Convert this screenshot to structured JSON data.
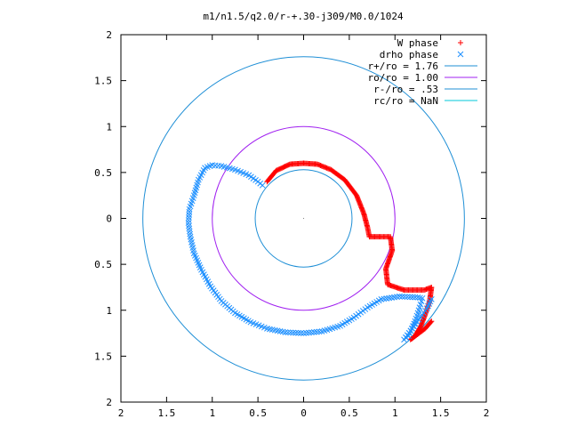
{
  "chart_data": {
    "type": "scatter",
    "title": "m1/n1.5/q2.0/r-+.30-j309/M0.0/1024",
    "xlabel": "",
    "ylabel": "",
    "xlim": [
      -2,
      2
    ],
    "ylim": [
      -2,
      2
    ],
    "x_tick_labels": [
      "2",
      "1.5",
      "1",
      "0.5",
      "0",
      "0.5",
      "1",
      "1.5",
      "2"
    ],
    "y_tick_labels": [
      "2",
      "1.5",
      "1",
      "0.5",
      "0",
      "0.5",
      "1",
      "1.5",
      "2"
    ],
    "grid": false,
    "legend_position": "top-right",
    "colors": {
      "w_phase": "#ff0000",
      "drho_phase": "#1e90ff",
      "r_plus": "#1f8fd6",
      "r_o": "#a020f0",
      "r_minus": "#1f8fd6",
      "r_c": "#00c8d8"
    },
    "series": [
      {
        "name": "W phase",
        "marker": "+",
        "key": "w_phase",
        "points": [
          [
            -0.4,
            0.4
          ],
          [
            -0.3,
            0.52
          ],
          [
            -0.15,
            0.59
          ],
          [
            0.0,
            0.6
          ],
          [
            0.15,
            0.59
          ],
          [
            0.3,
            0.53
          ],
          [
            0.45,
            0.42
          ],
          [
            0.58,
            0.25
          ],
          [
            0.66,
            0.05
          ],
          [
            0.7,
            -0.1
          ],
          [
            0.72,
            -0.2
          ],
          [
            0.85,
            -0.2
          ],
          [
            0.95,
            -0.2
          ],
          [
            0.97,
            -0.35
          ],
          [
            0.9,
            -0.55
          ],
          [
            0.92,
            -0.72
          ],
          [
            1.1,
            -0.78
          ],
          [
            1.32,
            -0.78
          ],
          [
            1.4,
            -0.75
          ],
          [
            1.38,
            -0.9
          ],
          [
            1.33,
            -1.05
          ],
          [
            1.28,
            -1.18
          ],
          [
            1.22,
            -1.28
          ],
          [
            1.17,
            -1.32
          ],
          [
            1.33,
            -1.2
          ],
          [
            1.4,
            -1.12
          ]
        ]
      },
      {
        "name": "drho phase",
        "marker": "x",
        "key": "drho_phase",
        "points": [
          [
            -0.45,
            0.36
          ],
          [
            -0.5,
            0.4
          ],
          [
            -0.6,
            0.47
          ],
          [
            -0.75,
            0.53
          ],
          [
            -0.9,
            0.57
          ],
          [
            -1.0,
            0.58
          ],
          [
            -1.08,
            0.55
          ],
          [
            -1.15,
            0.42
          ],
          [
            -1.2,
            0.25
          ],
          [
            -1.25,
            0.1
          ],
          [
            -1.26,
            -0.05
          ],
          [
            -1.24,
            -0.2
          ],
          [
            -1.2,
            -0.38
          ],
          [
            -1.12,
            -0.56
          ],
          [
            -1.02,
            -0.74
          ],
          [
            -0.9,
            -0.9
          ],
          [
            -0.75,
            -1.03
          ],
          [
            -0.58,
            -1.13
          ],
          [
            -0.4,
            -1.2
          ],
          [
            -0.2,
            -1.24
          ],
          [
            0.0,
            -1.25
          ],
          [
            0.2,
            -1.23
          ],
          [
            0.4,
            -1.17
          ],
          [
            0.55,
            -1.08
          ],
          [
            0.7,
            -0.97
          ],
          [
            0.85,
            -0.88
          ],
          [
            1.05,
            -0.85
          ],
          [
            1.25,
            -0.86
          ],
          [
            1.3,
            -0.87
          ],
          [
            1.27,
            -0.97
          ],
          [
            1.22,
            -1.12
          ],
          [
            1.15,
            -1.28
          ],
          [
            1.1,
            -1.32
          ],
          [
            1.35,
            -0.98
          ],
          [
            1.4,
            -0.88
          ]
        ]
      }
    ],
    "circles": [
      {
        "name": "r+/ro = 1.76",
        "key": "r_plus",
        "radius": 1.76
      },
      {
        "name": "ro/ro = 1.00",
        "key": "r_o",
        "radius": 1.0
      },
      {
        "name": "r-/ro = .53",
        "key": "r_minus",
        "radius": 0.53
      },
      {
        "name": "rc/ro = NaN",
        "key": "r_c",
        "radius": null
      }
    ]
  }
}
